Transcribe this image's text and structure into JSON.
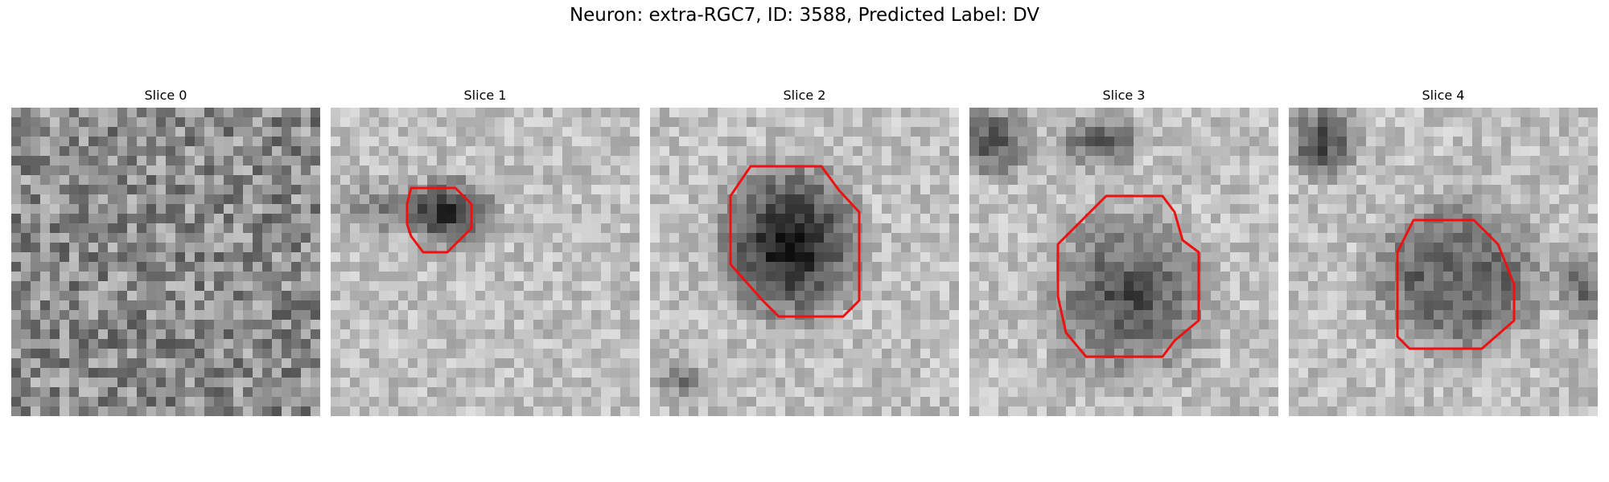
{
  "figure": {
    "title": "Neuron: extra-RGC7, ID: 3588, Predicted Label: DV"
  },
  "panels": [
    {
      "title": "Slice 0",
      "has_contour": false
    },
    {
      "title": "Slice 1",
      "has_contour": true
    },
    {
      "title": "Slice 2",
      "has_contour": true
    },
    {
      "title": "Slice 3",
      "has_contour": true
    },
    {
      "title": "Slice 4",
      "has_contour": true
    }
  ],
  "colors": {
    "contour": "#ee1111"
  }
}
